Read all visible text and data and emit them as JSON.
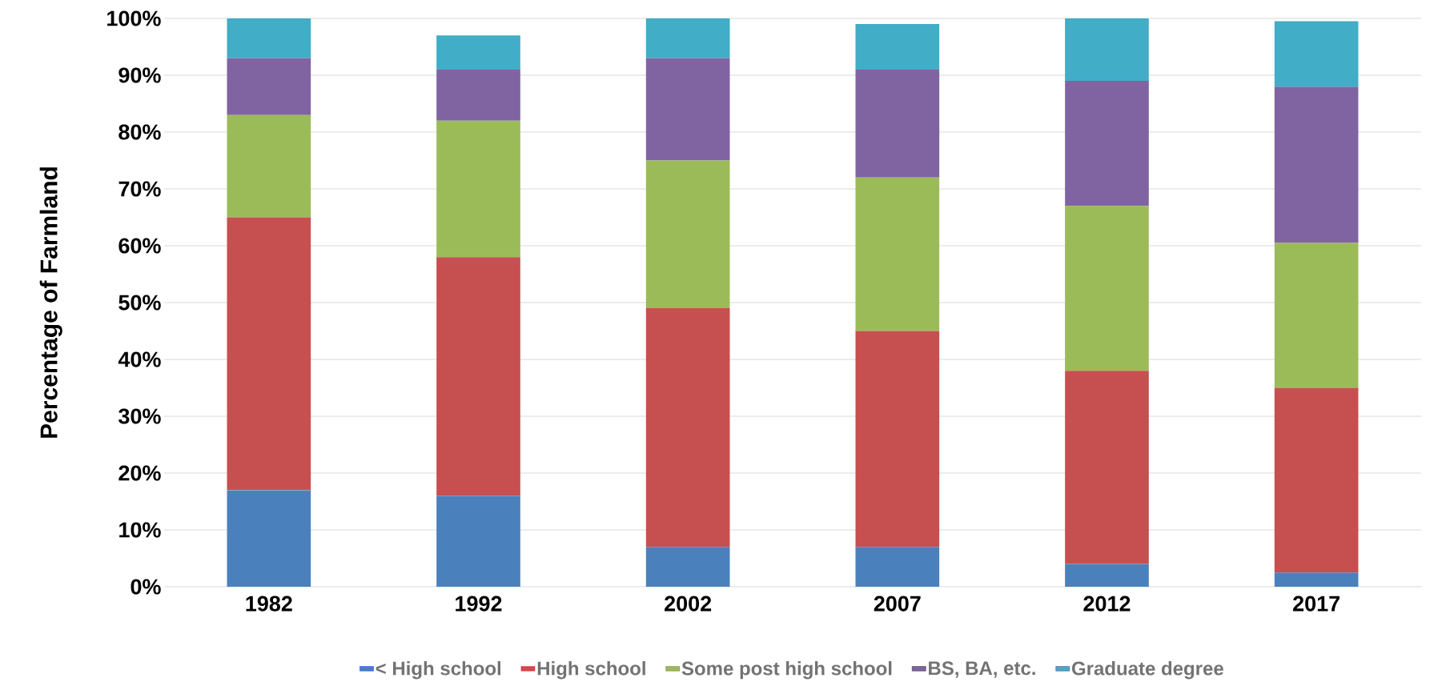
{
  "chart_data": {
    "type": "bar",
    "stacked": true,
    "ylabel": "Percentage of Farmland",
    "categories": [
      "1982",
      "1992",
      "2002",
      "2007",
      "2012",
      "2017"
    ],
    "series": [
      {
        "name": "< High school",
        "color": "#4a81bd",
        "values": [
          17,
          16,
          7,
          7,
          4,
          2.5
        ]
      },
      {
        "name": "High school",
        "color": "#c6504f",
        "values": [
          48,
          42,
          42,
          38,
          34,
          32.5
        ]
      },
      {
        "name": "Some post high school",
        "color": "#9bbb59",
        "values": [
          18,
          24,
          26,
          27,
          29,
          25.5
        ]
      },
      {
        "name": "BS, BA, etc.",
        "color": "#8064a2",
        "values": [
          10,
          9,
          18,
          19,
          22,
          27.5
        ]
      },
      {
        "name": "Graduate degree",
        "color": "#41adc7",
        "values": [
          7,
          6,
          7,
          8,
          11,
          11.5
        ]
      }
    ],
    "ylim": [
      0,
      100
    ],
    "yticks": [
      {
        "value": 0,
        "label": "0%"
      },
      {
        "value": 10,
        "label": "10%"
      },
      {
        "value": 20,
        "label": "20%"
      },
      {
        "value": 30,
        "label": "30%"
      },
      {
        "value": 40,
        "label": "40%"
      },
      {
        "value": 50,
        "label": "50%"
      },
      {
        "value": 60,
        "label": "60%"
      },
      {
        "value": 70,
        "label": "70%"
      },
      {
        "value": 80,
        "label": "80%"
      },
      {
        "value": 90,
        "label": "90%"
      },
      {
        "value": 100,
        "label": "100%"
      }
    ],
    "grid": "y",
    "legend": "bottom"
  }
}
